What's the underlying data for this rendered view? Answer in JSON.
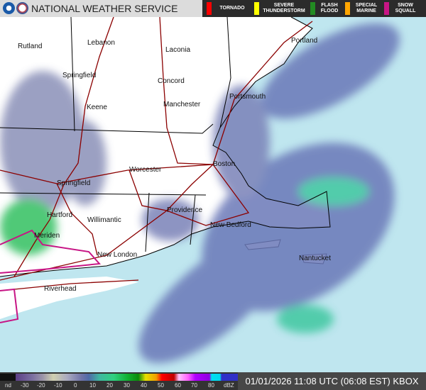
{
  "header": {
    "title": "NATIONAL WEATHER SERVICE",
    "warnings": [
      {
        "label": "TORNADO",
        "color": "#ff0000"
      },
      {
        "label": "SEVERE THUNDERSTORM",
        "color": "#ffff00"
      },
      {
        "label": "FLASH FLOOD",
        "color": "#228b22"
      },
      {
        "label": "SPECIAL MARINE",
        "color": "#ffa500"
      },
      {
        "label": "SNOW SQUALL",
        "color": "#c71585"
      }
    ]
  },
  "cities": [
    "Rutland",
    "Lebanon",
    "Laconia",
    "Springfield",
    "Concord",
    "Keene",
    "Manchester",
    "Portsmouth",
    "Portland",
    "Worcester",
    "Boston",
    "Springfield",
    "Hartford",
    "Providence",
    "Willimantic",
    "New Bedford",
    "Meriden",
    "New London",
    "Nantucket",
    "Riverhead"
  ],
  "legend": {
    "labels": [
      "nd",
      "-30",
      "-20",
      "-10",
      "0",
      "10",
      "20",
      "30",
      "40",
      "50",
      "60",
      "70",
      "80",
      "dBZ"
    ]
  },
  "timestamp": "01/01/2026 11:08 UTC (06:08 EST) KBOX",
  "colors": {
    "ocean": "#bfe6ef",
    "land": "#ffffff",
    "roads": "#8b0000",
    "radar_light": "#6a78b8"
  }
}
